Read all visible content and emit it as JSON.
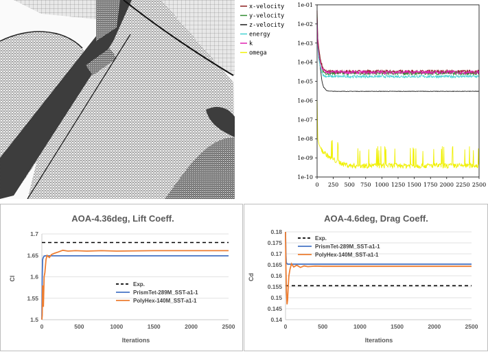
{
  "mesh_view": {
    "content": "surface mesh render"
  },
  "chart_data": [
    {
      "id": "residuals",
      "type": "line",
      "title": "",
      "xlabel": "",
      "ylabel": "",
      "log_y": true,
      "xlim": [
        0,
        2500
      ],
      "ylim_exponents": [
        -10,
        -1
      ],
      "x_ticks": [
        "0",
        "250",
        "500",
        "750",
        "1000",
        "1250",
        "1500",
        "1750",
        "2000",
        "2250",
        "2500"
      ],
      "y_ticks": [
        "1e-10",
        "1e-09",
        "1e-08",
        "1e-07",
        "1e-06",
        "1e-05",
        "1e-04",
        "1e-03",
        "1e-02",
        "1e-01"
      ],
      "legend_position": "top-left",
      "series": [
        {
          "name": "x-velocity",
          "color": "#8b1a1a",
          "x": [
            0,
            10,
            25,
            50,
            75,
            100,
            150,
            2500
          ],
          "y": [
            0.05,
            0.002,
            0.0006,
            0.00015,
            7e-05,
            4e-05,
            3.2e-05,
            3.2e-05
          ],
          "noise": 0.45
        },
        {
          "name": "y-velocity",
          "color": "#2e8b2e",
          "x": [
            0,
            10,
            25,
            50,
            75,
            100,
            150,
            2500
          ],
          "y": [
            0.03,
            0.001,
            0.0004,
            0.0001,
            5e-05,
            3e-05,
            2.7e-05,
            2.7e-05
          ],
          "noise": 0.4
        },
        {
          "name": "z-velocity",
          "color": "#1a1a1a",
          "x": [
            0,
            10,
            25,
            50,
            75,
            100,
            150,
            250,
            2500
          ],
          "y": [
            0.02,
            0.0008,
            0.0002,
            5e-05,
            1e-05,
            5e-06,
            3.2e-06,
            3e-06,
            3e-06
          ],
          "noise": 0.05
        },
        {
          "name": "energy",
          "color": "#40d0d0",
          "x": [
            0,
            10,
            25,
            50,
            75,
            100,
            150,
            2500
          ],
          "y": [
            0.015,
            0.0006,
            0.00015,
            6e-05,
            3e-05,
            2e-05,
            1.8e-05,
            1.8e-05
          ],
          "noise": 0.3
        },
        {
          "name": "k",
          "color": "#e020b0",
          "x": [
            0,
            10,
            25,
            50,
            75,
            100,
            150,
            2500
          ],
          "y": [
            0.02,
            0.001,
            0.0003,
            0.0001,
            5e-05,
            3.5e-05,
            3e-05,
            3e-05
          ],
          "noise": 0.4
        },
        {
          "name": "omega",
          "color": "#f0f000",
          "x": [
            0,
            10,
            30,
            60,
            100,
            150,
            200,
            300,
            400,
            500,
            2500
          ],
          "y": [
            1e-06,
            1e-08,
            5e-09,
            3e-09,
            2e-09,
            1.5e-09,
            1e-09,
            7e-10,
            5e-10,
            4e-10,
            4e-10
          ],
          "noise": 0.6
        }
      ]
    },
    {
      "id": "lift",
      "type": "line",
      "title": "AOA-4.36deg, Lift Coeff.",
      "xlabel": "Iterations",
      "ylabel": "Cl",
      "xlim": [
        0,
        2500
      ],
      "ylim": [
        1.5,
        1.7
      ],
      "x_ticks": [
        "0",
        "500",
        "1000",
        "1500",
        "2000",
        "2500"
      ],
      "y_ticks": [
        "1.5",
        "1.55",
        "1.6",
        "1.65",
        "1.7"
      ],
      "legend_position": "bottom-right",
      "series": [
        {
          "name": "Exp.",
          "color": "#000000",
          "dash": true,
          "x": [
            0,
            2500
          ],
          "y": [
            1.68,
            1.68
          ]
        },
        {
          "name": "PrismTet-289M_SST-a1-1",
          "color": "#4472c4",
          "x": [
            0,
            5,
            10,
            20,
            30,
            40,
            60,
            80,
            100,
            150,
            2500
          ],
          "y": [
            1.5,
            1.6,
            1.64,
            1.646,
            1.648,
            1.649,
            1.649,
            1.649,
            1.649,
            1.649,
            1.649
          ]
        },
        {
          "name": "PolyHex-140M_SST-a1-1",
          "color": "#ed7d31",
          "x": [
            0,
            5,
            10,
            20,
            30,
            40,
            55,
            70,
            100,
            130,
            170,
            220,
            280,
            350,
            450,
            600,
            800,
            1000,
            1500,
            2000,
            2500
          ],
          "y": [
            1.5,
            1.51,
            1.58,
            1.53,
            1.6,
            1.61,
            1.64,
            1.65,
            1.645,
            1.652,
            1.655,
            1.658,
            1.662,
            1.66,
            1.661,
            1.66,
            1.661,
            1.66,
            1.661,
            1.661,
            1.661
          ]
        }
      ]
    },
    {
      "id": "drag",
      "type": "line",
      "title": "AOA-4.6deg, Drag Coeff.",
      "xlabel": "Iterations",
      "ylabel": "Cd",
      "xlim": [
        0,
        2500
      ],
      "ylim": [
        0.14,
        0.18
      ],
      "x_ticks": [
        "0",
        "500",
        "1000",
        "1500",
        "2000",
        "2500"
      ],
      "y_ticks": [
        "0.14",
        "0.145",
        "0.15",
        "0.155",
        "0.16",
        "0.165",
        "0.17",
        "0.175",
        "0.18"
      ],
      "legend_position": "top-left",
      "series": [
        {
          "name": "Exp.",
          "color": "#000000",
          "dash": true,
          "x": [
            0,
            2500
          ],
          "y": [
            0.1555,
            0.1555
          ]
        },
        {
          "name": "PrismTet-289M_SST-a1-1",
          "color": "#4472c4",
          "x": [
            0,
            5,
            10,
            20,
            30,
            50,
            100,
            2500
          ],
          "y": [
            0.18,
            0.17,
            0.166,
            0.1655,
            0.1653,
            0.1653,
            0.1653,
            0.1653
          ]
        },
        {
          "name": "PolyHex-140M_SST-a1-1",
          "color": "#ed7d31",
          "x": [
            0,
            5,
            12,
            20,
            28,
            36,
            45,
            60,
            80,
            110,
            150,
            200,
            250,
            300,
            400,
            500,
            800,
            1200,
            1800,
            2500
          ],
          "y": [
            0.18,
            0.165,
            0.153,
            0.147,
            0.149,
            0.155,
            0.16,
            0.163,
            0.1655,
            0.164,
            0.1648,
            0.1638,
            0.1645,
            0.1642,
            0.1644,
            0.1643,
            0.1643,
            0.1643,
            0.1643,
            0.1643
          ]
        }
      ]
    }
  ]
}
